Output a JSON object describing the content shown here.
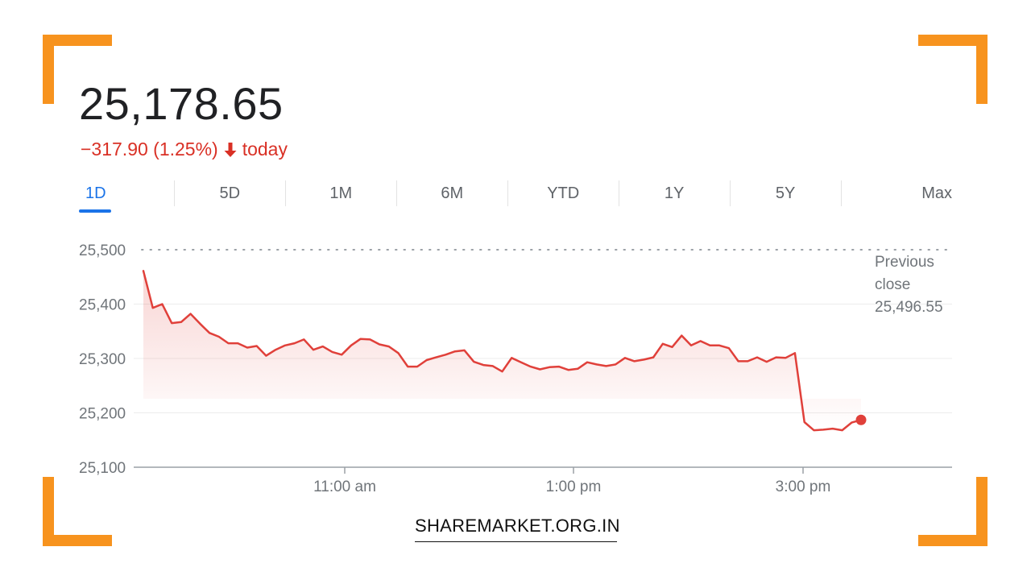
{
  "header": {
    "price": "25,178.65",
    "change": "−317.90 (1.25%)",
    "change_suffix": "today",
    "change_color": "#d93025"
  },
  "tabs": [
    {
      "label": "1D",
      "active": true
    },
    {
      "label": "5D",
      "active": false
    },
    {
      "label": "1M",
      "active": false
    },
    {
      "label": "6M",
      "active": false
    },
    {
      "label": "YTD",
      "active": false
    },
    {
      "label": "1Y",
      "active": false
    },
    {
      "label": "5Y",
      "active": false
    },
    {
      "label": "Max",
      "active": false
    }
  ],
  "chart_data": {
    "type": "area",
    "line_color": "#e0403a",
    "grid": true,
    "y_ticks": [
      25100,
      25200,
      25300,
      25400,
      25500
    ],
    "y_tick_labels": [
      "25,100",
      "25,200",
      "25,300",
      "25,400",
      "25,500"
    ],
    "ylim": [
      25100,
      25500
    ],
    "x_ticks": [
      "11:00 am",
      "1:00 pm",
      "3:00 pm"
    ],
    "previous_close": {
      "label_line1": "Previous",
      "label_line2": "close",
      "value_label": "25,496.55",
      "value": 25496.55
    },
    "series": [
      {
        "values": [
          25461,
          25393,
          25400,
          25365,
          25367,
          25382,
          25364,
          25347,
          25340,
          25328,
          25328,
          25320,
          25323,
          25305,
          25316,
          25324,
          25328,
          25335,
          25316,
          25322,
          25312,
          25307,
          25324,
          25336,
          25335,
          25326,
          25322,
          25310,
          25285,
          25285,
          25297,
          25302,
          25307,
          25313,
          25315,
          25294,
          25288,
          25286,
          25276,
          25301,
          25293,
          25285,
          25280,
          25284,
          25285,
          25279,
          25281,
          25293,
          25289,
          25286,
          25289,
          25301,
          25295,
          25298,
          25302,
          25327,
          25321,
          25342,
          25324,
          25332,
          25324,
          25324,
          25319,
          25295,
          25295,
          25302,
          25294,
          25302,
          25301,
          25310,
          25183,
          25168,
          25169,
          25171,
          25168,
          25182,
          25187
        ]
      }
    ]
  },
  "footer": {
    "brand": "SHAREMARKET.ORG.IN"
  },
  "colors": {
    "frame_accent": "#f7931e",
    "tab_active": "#1a73e8"
  }
}
